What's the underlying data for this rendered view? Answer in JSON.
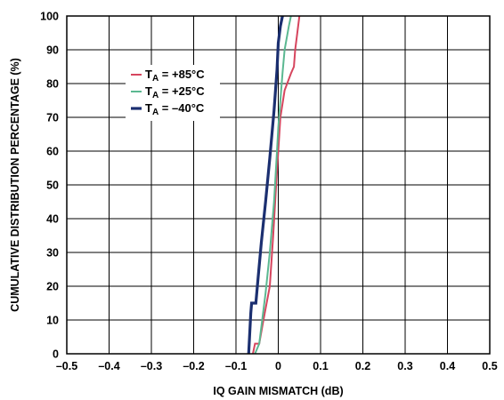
{
  "chart_data": {
    "type": "line",
    "xlabel": "IQ GAIN MISMATCH (dB)",
    "ylabel": "CUMULATIVE DISTRIBUTION PERCENTAGE (%)",
    "xlim": [
      -0.5,
      0.5
    ],
    "ylim": [
      0,
      100
    ],
    "x_ticks": [
      "–0.5",
      "–0.4",
      "–0.3",
      "–0.2",
      "–0.1",
      "0",
      "0.1",
      "0.2",
      "0.3",
      "0.4",
      "0.5"
    ],
    "y_ticks": [
      "0",
      "10",
      "20",
      "30",
      "40",
      "50",
      "60",
      "70",
      "80",
      "90",
      "100"
    ],
    "grid": true,
    "legend_position": "upper-left",
    "series": [
      {
        "label_main": "T",
        "label_sub": "A",
        "label_rest": " = +85°C",
        "color": "#d6455e",
        "weight": "thin",
        "points": [
          [
            -0.06,
            0
          ],
          [
            -0.055,
            3
          ],
          [
            -0.045,
            3
          ],
          [
            -0.035,
            10
          ],
          [
            -0.02,
            20
          ],
          [
            -0.012,
            35
          ],
          [
            -0.005,
            50
          ],
          [
            0.0,
            60
          ],
          [
            0.005,
            70
          ],
          [
            0.015,
            78
          ],
          [
            0.03,
            83
          ],
          [
            0.037,
            85
          ],
          [
            0.04,
            90
          ],
          [
            0.045,
            95
          ],
          [
            0.05,
            100
          ]
        ]
      },
      {
        "label_main": "T",
        "label_sub": "A",
        "label_rest": " = +25°C",
        "color": "#5bb891",
        "weight": "thin",
        "points": [
          [
            -0.055,
            0
          ],
          [
            -0.045,
            3
          ],
          [
            -0.04,
            8
          ],
          [
            -0.03,
            18
          ],
          [
            -0.02,
            30
          ],
          [
            -0.01,
            45
          ],
          [
            -0.003,
            60
          ],
          [
            0.0,
            67
          ],
          [
            0.005,
            75
          ],
          [
            0.01,
            83
          ],
          [
            0.015,
            90
          ],
          [
            0.025,
            97
          ],
          [
            0.03,
            100
          ]
        ]
      },
      {
        "label_main": "T",
        "label_sub": "A",
        "label_rest": " = –40°C",
        "color": "#1b2f70",
        "weight": "thick",
        "points": [
          [
            -0.07,
            0
          ],
          [
            -0.065,
            12
          ],
          [
            -0.063,
            15
          ],
          [
            -0.053,
            15
          ],
          [
            -0.048,
            22
          ],
          [
            -0.04,
            33
          ],
          [
            -0.03,
            45
          ],
          [
            -0.02,
            58
          ],
          [
            -0.01,
            72
          ],
          [
            -0.003,
            84
          ],
          [
            0.0,
            92
          ],
          [
            0.005,
            97
          ],
          [
            0.01,
            100
          ]
        ]
      }
    ]
  }
}
